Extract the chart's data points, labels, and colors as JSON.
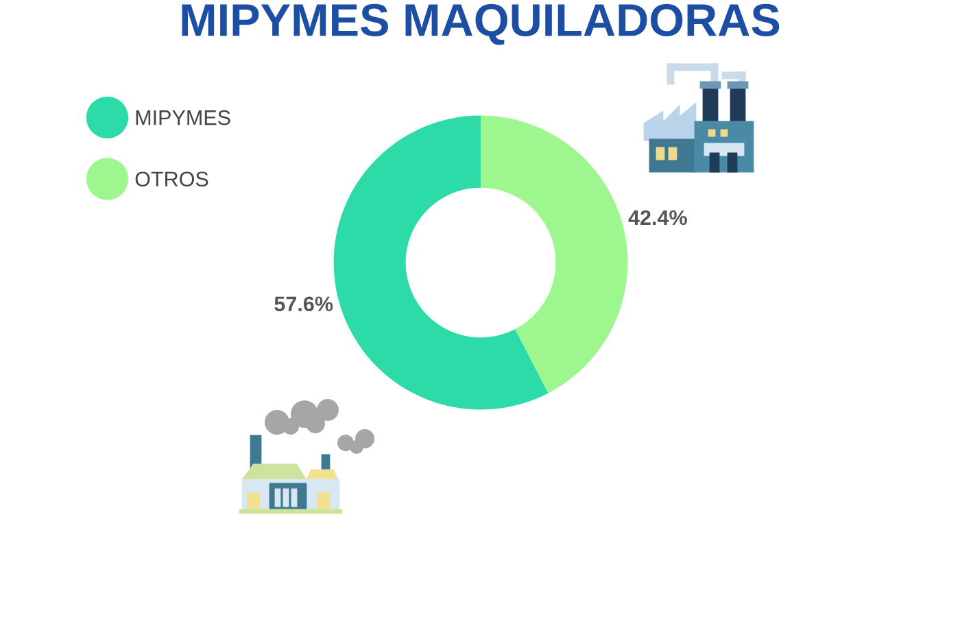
{
  "chart_data": {
    "type": "donut",
    "title": "MIPYMES MAQUILADORAS",
    "categories": [
      "MIPYMES",
      "OTROS"
    ],
    "values": [
      57.6,
      42.4
    ],
    "colors": [
      "#2ddba8",
      "#9ef78e"
    ],
    "value_labels": [
      "57.6%",
      "42.4%"
    ],
    "legend": "top left"
  }
}
